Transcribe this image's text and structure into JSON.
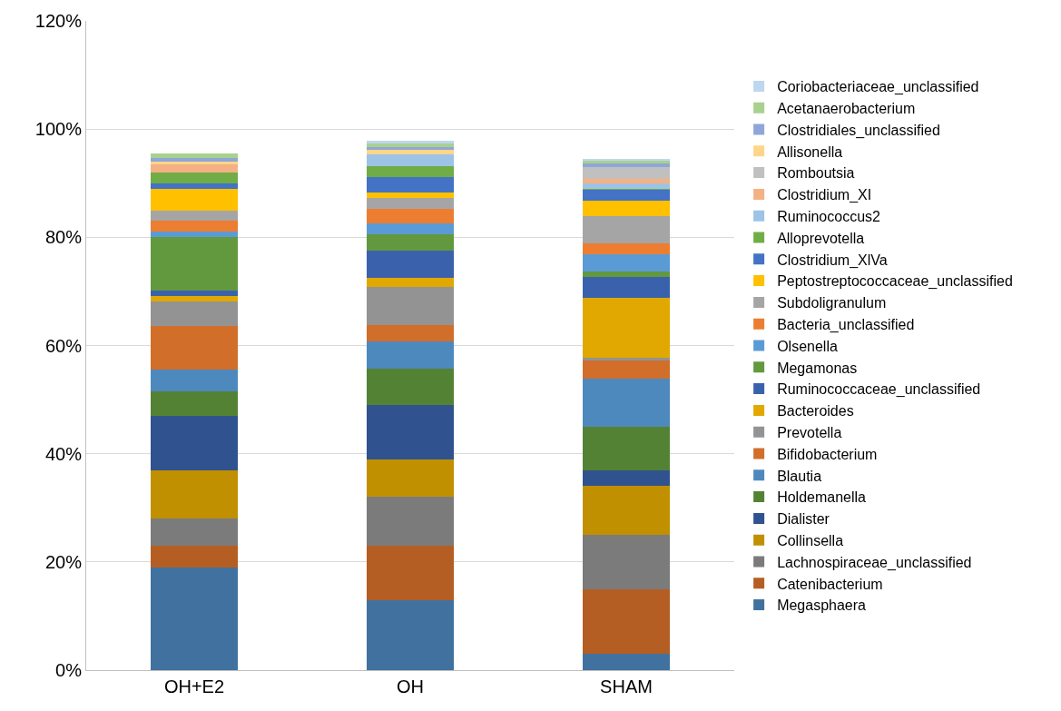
{
  "chart_data": {
    "type": "bar",
    "stacked": true,
    "categories": [
      "OH+E2",
      "OH",
      "SHAM"
    ],
    "ylim": [
      0,
      120
    ],
    "yticks": [
      {
        "value": 0,
        "label": "0%"
      },
      {
        "value": 20,
        "label": "20%"
      },
      {
        "value": 40,
        "label": "40%"
      },
      {
        "value": 60,
        "label": "60%"
      },
      {
        "value": 80,
        "label": "80%"
      },
      {
        "value": 100,
        "label": "100%"
      },
      {
        "value": 120,
        "label": "120%"
      }
    ],
    "grid": "y",
    "legend": "right",
    "series": [
      {
        "name": "Megasphaera",
        "color": "#41729f",
        "values": [
          19,
          13,
          3
        ]
      },
      {
        "name": "Catenibacterium",
        "color": "#b55e23",
        "values": [
          4,
          10,
          12
        ]
      },
      {
        "name": "Lachnospiraceae_unclassified",
        "color": "#7b7b7b",
        "values": [
          5,
          9,
          10
        ]
      },
      {
        "name": "Collinsella",
        "color": "#c09000",
        "values": [
          9,
          7,
          9
        ]
      },
      {
        "name": "Dialister",
        "color": "#30538f",
        "values": [
          10,
          10,
          3
        ]
      },
      {
        "name": "Holdemanella",
        "color": "#548235",
        "values": [
          4.5,
          6.8,
          8
        ]
      },
      {
        "name": "Blautia",
        "color": "#4e89be",
        "values": [
          4.1,
          5.0,
          8.8
        ]
      },
      {
        "name": "Bifidobacterium",
        "color": "#d16e2a",
        "values": [
          8,
          3.0,
          3.4
        ]
      },
      {
        "name": "Prevotella",
        "color": "#939393",
        "values": [
          4.6,
          7.0,
          0.6
        ]
      },
      {
        "name": "Bacteroides",
        "color": "#e0a800",
        "values": [
          0.9,
          1.7,
          11.0
        ]
      },
      {
        "name": "Ruminococcaceae_unclassified",
        "color": "#3a62ac",
        "values": [
          1.1,
          5.0,
          3.9
        ]
      },
      {
        "name": "Megamonas",
        "color": "#62993e",
        "values": [
          9.8,
          3.0,
          1.0
        ]
      },
      {
        "name": "Olsenella",
        "color": "#5b9bd5",
        "values": [
          1.0,
          2.0,
          3.1
        ]
      },
      {
        "name": "Bacteria_unclassified",
        "color": "#ed7d31",
        "values": [
          2.0,
          2.7,
          2.1
        ]
      },
      {
        "name": "Subdoligranulum",
        "color": "#a5a5a5",
        "values": [
          2.0,
          2.0,
          5.0
        ]
      },
      {
        "name": "Peptostreptococcaceae_unclassified",
        "color": "#ffc000",
        "values": [
          4.0,
          1.0,
          2.9
        ]
      },
      {
        "name": "Clostridium_XlVa",
        "color": "#4472c4",
        "values": [
          1.0,
          3.0,
          2.0
        ]
      },
      {
        "name": "Alloprevotella",
        "color": "#70ad47",
        "values": [
          1.9,
          2.0,
          0.2
        ]
      },
      {
        "name": "Ruminococcus2",
        "color": "#9dc3e6",
        "values": [
          0,
          2.1,
          1.0
        ]
      },
      {
        "name": "Clostridium_XI",
        "color": "#f4b183",
        "values": [
          1.5,
          0,
          0.8
        ]
      },
      {
        "name": "Romboutsia",
        "color": "#c0c0c0",
        "values": [
          0,
          0,
          2.2
        ]
      },
      {
        "name": "Allisonella",
        "color": "#ffd58a",
        "values": [
          0.6,
          0.8,
          0
        ]
      },
      {
        "name": "Clostridiales_unclassified",
        "color": "#8fa6d8",
        "values": [
          0.6,
          0.6,
          0.6
        ]
      },
      {
        "name": "Acetanaerobacterium",
        "color": "#a9d18e",
        "values": [
          0.9,
          0.6,
          0.5
        ]
      },
      {
        "name": "Coriobacteriaceae_unclassified",
        "color": "#bdd7ee",
        "values": [
          null,
          0.6,
          0.4
        ]
      }
    ]
  }
}
